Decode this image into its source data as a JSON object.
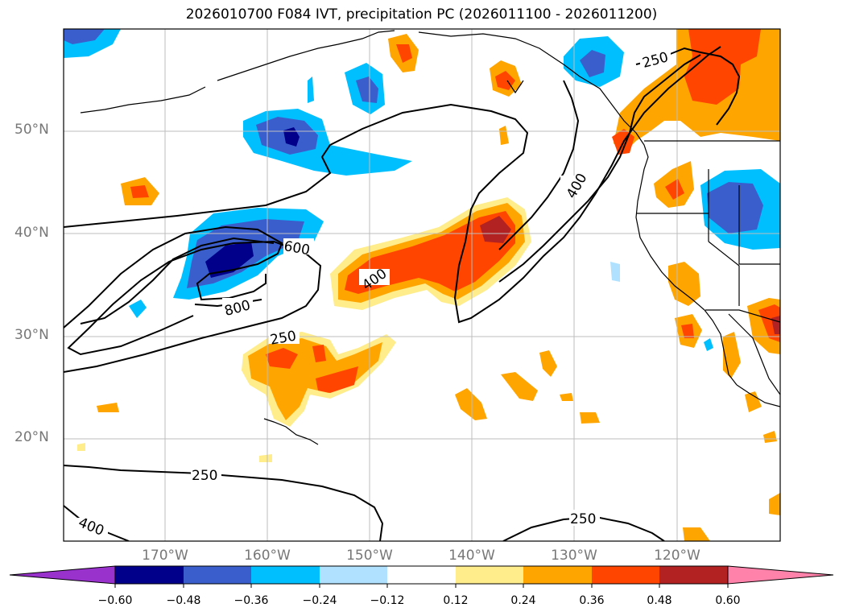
{
  "title": "2026010700 F084 IVT, precipitation PC (2026011100 - 2026011200)",
  "lat_labels": [
    "50°N",
    "40°N",
    "30°N",
    "20°N"
  ],
  "lon_labels": [
    "170°W",
    "160°W",
    "150°W",
    "140°W",
    "130°W",
    "120°W"
  ],
  "contour_labels": [
    "250",
    "400",
    "600",
    "800",
    "250",
    "400",
    "250",
    "250",
    "400"
  ],
  "colorbar": {
    "ticks": [
      "−0.60",
      "−0.48",
      "−0.36",
      "−0.24",
      "−0.12",
      "0.12",
      "0.24",
      "0.36",
      "0.48",
      "0.60"
    ],
    "colors": [
      "#9932CC",
      "#00008B",
      "#3A5FCD",
      "#00BFFF",
      "#B0E2FF",
      "#FFFFFF",
      "#FFEC8B",
      "#FFA500",
      "#FF4500",
      "#B22222",
      "#FF82AB"
    ]
  },
  "colors": {
    "neg_strong": "#00008B",
    "neg_mid": "#3A5FCD",
    "neg_light": "#00BFFF",
    "neg_faint": "#B0E2FF",
    "pos_faint": "#FFEC8B",
    "pos_light": "#FFA500",
    "pos_mid": "#FF4500",
    "pos_strong": "#B22222"
  }
}
